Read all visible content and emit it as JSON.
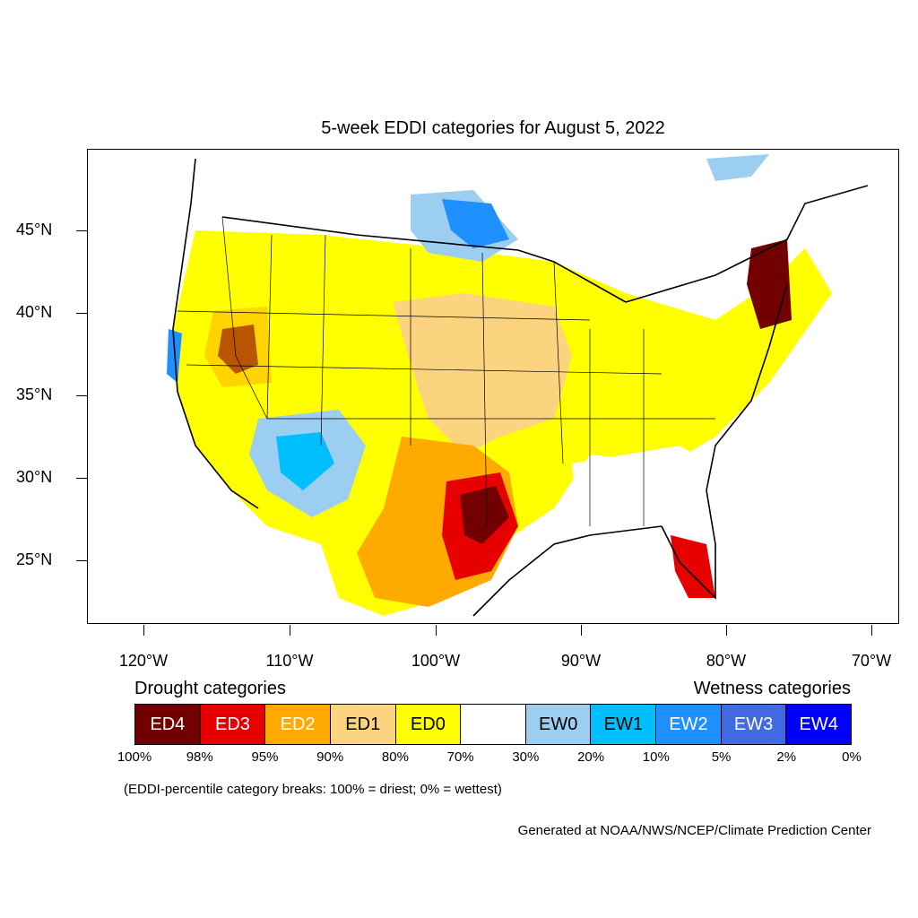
{
  "title": "5-week EDDI categories for August 5, 2022",
  "latitude_labels": [
    "45°N",
    "40°N",
    "35°N",
    "30°N",
    "25°N"
  ],
  "longitude_labels": [
    "120°W",
    "110°W",
    "100°W",
    "90°W",
    "80°W",
    "70°W"
  ],
  "legend": {
    "drought_title": "Drought categories",
    "wetness_title": "Wetness categories",
    "categories": [
      {
        "label": "ED4",
        "color": "#730000",
        "text_color": "#ffffff"
      },
      {
        "label": "ED3",
        "color": "#e60000",
        "text_color": "#ffffff"
      },
      {
        "label": "ED2",
        "color": "#ffaa00",
        "text_color": "#ffffff"
      },
      {
        "label": "ED1",
        "color": "#fcd37f",
        "text_color": "#000000"
      },
      {
        "label": "ED0",
        "color": "#ffff00",
        "text_color": "#000000"
      },
      {
        "label": "",
        "color": "#ffffff",
        "text_color": "#000000"
      },
      {
        "label": "EW0",
        "color": "#9ccef2",
        "text_color": "#000000"
      },
      {
        "label": "EW1",
        "color": "#00bfff",
        "text_color": "#000000"
      },
      {
        "label": "EW2",
        "color": "#1e90ff",
        "text_color": "#ffffff"
      },
      {
        "label": "EW3",
        "color": "#4169e1",
        "text_color": "#ffffff"
      },
      {
        "label": "EW4",
        "color": "#0000ff",
        "text_color": "#ffffff"
      }
    ],
    "percentiles": [
      "100%",
      "98%",
      "95%",
      "90%",
      "80%",
      "70%",
      "30%",
      "20%",
      "10%",
      "5%",
      "2%",
      "0%"
    ]
  },
  "note": "(EDDI-percentile category breaks: 100% = driest; 0% = wettest)",
  "credit": "Generated at NOAA/NWS/NCEP/Climate Prediction Center"
}
